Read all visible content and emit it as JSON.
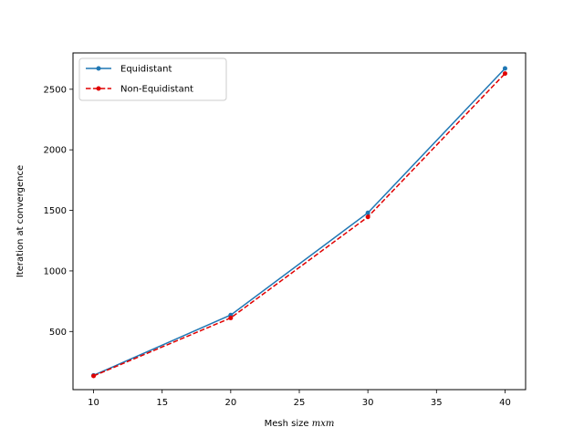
{
  "chart_data": {
    "type": "line",
    "title": "",
    "xlabel": "Mesh size ",
    "xlabel_math": "mxm",
    "ylabel": "Iteration at convergence",
    "xlim": [
      8.5,
      41.5
    ],
    "ylim": [
      20,
      2800
    ],
    "xticks": [
      10,
      15,
      20,
      25,
      30,
      35,
      40
    ],
    "yticks": [
      500,
      1000,
      1500,
      2000,
      2500
    ],
    "grid": false,
    "legend": "top-left",
    "x": [
      10,
      20,
      30,
      40
    ],
    "series": [
      {
        "name": "Equidistant",
        "values": [
          138,
          636,
          1480,
          2672
        ],
        "color": "#1f77b4",
        "dash": "solid",
        "marker": "dot"
      },
      {
        "name": "Non-Equidistant",
        "values": [
          133,
          612,
          1446,
          2630
        ],
        "color": "#e00000",
        "dash": "dashed",
        "marker": "dot"
      }
    ]
  }
}
